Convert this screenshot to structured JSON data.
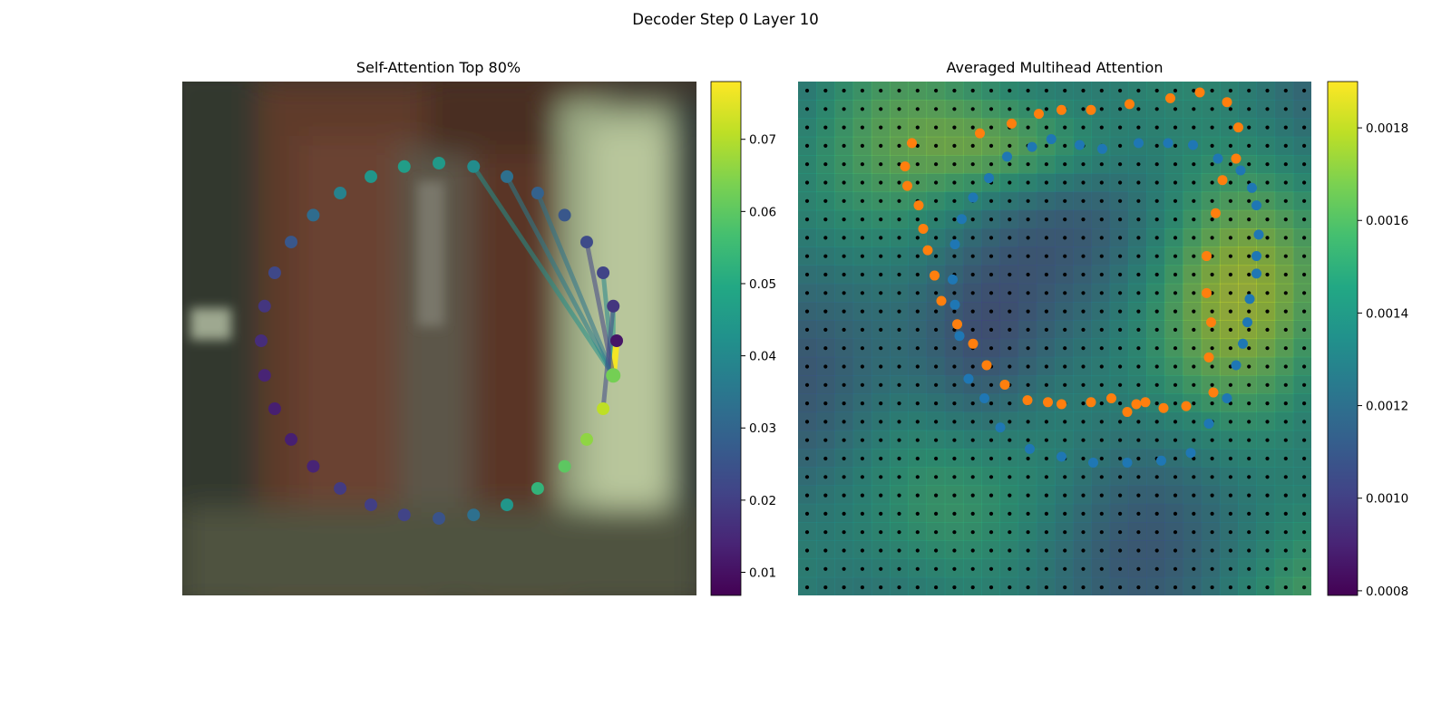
{
  "suptitle": "Decoder Step 0 Layer 10",
  "colors": {
    "viridis": [
      "#440154",
      "#482475",
      "#414487",
      "#355f8d",
      "#2a788e",
      "#21918c",
      "#22a884",
      "#44bf70",
      "#7ad151",
      "#bddf26",
      "#fde725"
    ],
    "series_blue": "#1f77b4",
    "series_orange": "#ff7f0e",
    "grid_dot": "#000000"
  },
  "chart_data": [
    {
      "type": "scatter",
      "title": "Self-Attention Top 80%",
      "background": "blurred photo (brown door, white curtain right)",
      "circle_points": {
        "count": 32,
        "values": [
          0.011,
          0.018,
          0.021,
          0.023,
          0.026,
          0.029,
          0.033,
          0.041,
          0.045,
          0.046,
          0.044,
          0.038,
          0.032,
          0.026,
          0.022,
          0.018,
          0.016,
          0.014,
          0.013,
          0.013,
          0.014,
          0.019,
          0.02,
          0.021,
          0.025,
          0.033,
          0.044,
          0.053,
          0.06,
          0.066,
          0.071,
          0.063
        ]
      },
      "edges": [
        {
          "from": 31,
          "to": 5,
          "value": 0.034
        },
        {
          "from": 31,
          "to": 6,
          "value": 0.036
        },
        {
          "from": 31,
          "to": 7,
          "value": 0.042
        },
        {
          "from": 31,
          "to": 2,
          "value": 0.039
        },
        {
          "from": 31,
          "to": 1,
          "value": 0.045
        },
        {
          "from": 31,
          "to": 0,
          "value": 0.077
        },
        {
          "from": 31,
          "to": 31,
          "value": 0.02
        },
        {
          "from": 30,
          "to": 1,
          "value": 0.022
        },
        {
          "from": 31,
          "to": 3,
          "value": 0.021
        }
      ],
      "colorbar": {
        "ticks": [
          0.01,
          0.02,
          0.03,
          0.04,
          0.05,
          0.06,
          0.07
        ],
        "min": 0.0068,
        "max": 0.078
      }
    },
    {
      "type": "heatmap",
      "title": "Averaged Multihead Attention",
      "grid_size": 28,
      "series": [
        {
          "color": "blue",
          "points": [
            [
              -0.015,
              0.93
            ],
            [
              0.11,
              0.9
            ],
            [
              0.21,
              0.88
            ],
            [
              0.37,
              0.91
            ],
            [
              0.5,
              0.91
            ],
            [
              0.61,
              0.9
            ],
            [
              0.72,
              0.83
            ],
            [
              0.82,
              0.77
            ],
            [
              0.87,
              0.68
            ],
            [
              0.89,
              0.59
            ],
            [
              0.9,
              0.44
            ],
            [
              0.89,
              0.33
            ],
            [
              0.89,
              0.24
            ],
            [
              0.86,
              0.11
            ],
            [
              0.85,
              -0.01
            ],
            [
              0.83,
              -0.12
            ],
            [
              0.8,
              -0.23
            ],
            [
              0.76,
              -0.4
            ],
            [
              0.68,
              -0.53
            ],
            [
              0.6,
              -0.68
            ],
            [
              0.47,
              -0.72
            ],
            [
              0.32,
              -0.73
            ],
            [
              0.17,
              -0.73
            ],
            [
              0.03,
              -0.7
            ],
            [
              -0.11,
              -0.66
            ],
            [
              -0.24,
              -0.55
            ],
            [
              -0.31,
              -0.4
            ],
            [
              -0.38,
              -0.3
            ],
            [
              -0.42,
              -0.08
            ],
            [
              -0.44,
              0.08
            ],
            [
              -0.45,
              0.21
            ],
            [
              -0.44,
              0.39
            ],
            [
              -0.41,
              0.52
            ],
            [
              -0.36,
              0.63
            ],
            [
              -0.29,
              0.73
            ],
            [
              -0.21,
              0.84
            ],
            [
              -0.1,
              0.89
            ]
          ]
        },
        {
          "color": "orange",
          "points": [
            [
              -0.33,
              0.96
            ],
            [
              -0.19,
              1.01
            ],
            [
              -0.07,
              1.06
            ],
            [
              0.03,
              1.08
            ],
            [
              0.16,
              1.08
            ],
            [
              0.33,
              1.11
            ],
            [
              0.51,
              1.14
            ],
            [
              0.64,
              1.17
            ],
            [
              0.76,
              1.12
            ],
            [
              0.81,
              0.99
            ],
            [
              0.8,
              0.83
            ],
            [
              0.74,
              0.72
            ],
            [
              0.71,
              0.55
            ],
            [
              0.67,
              0.33
            ],
            [
              0.67,
              0.14
            ],
            [
              0.69,
              -0.01
            ],
            [
              0.68,
              -0.19
            ],
            [
              0.7,
              -0.37
            ],
            [
              0.58,
              -0.44
            ],
            [
              0.48,
              -0.45
            ],
            [
              0.4,
              -0.42
            ],
            [
              0.36,
              -0.43
            ],
            [
              0.32,
              -0.47
            ],
            [
              0.25,
              -0.4
            ],
            [
              0.16,
              -0.42
            ],
            [
              0.03,
              -0.43
            ],
            [
              -0.03,
              -0.42
            ],
            [
              -0.12,
              -0.41
            ],
            [
              -0.22,
              -0.33
            ],
            [
              -0.3,
              -0.23
            ],
            [
              -0.36,
              -0.12
            ],
            [
              -0.43,
              -0.02
            ],
            [
              -0.5,
              0.1
            ],
            [
              -0.53,
              0.23
            ],
            [
              -0.56,
              0.36
            ],
            [
              -0.58,
              0.47
            ],
            [
              -0.6,
              0.59
            ],
            [
              -0.65,
              0.69
            ],
            [
              -0.66,
              0.79
            ],
            [
              -0.63,
              0.91
            ]
          ]
        }
      ],
      "colorbar": {
        "ticks": [
          0.0008,
          0.001,
          0.0012,
          0.0014,
          0.0016,
          0.0018
        ],
        "min": 0.00079,
        "max": 0.0019
      }
    }
  ]
}
